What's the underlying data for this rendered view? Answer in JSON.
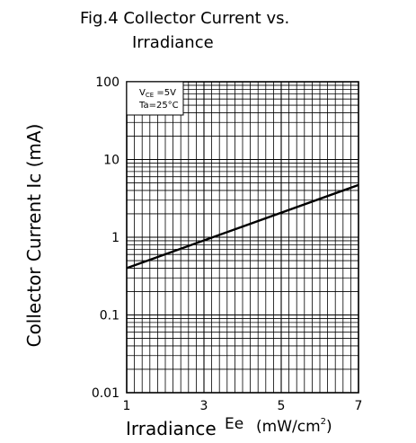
{
  "chart_data": {
    "type": "line",
    "title_line1": "Fig.4  Collector  Current  vs.",
    "title_line2": "Irradiance",
    "xlabel": "Irradiance",
    "xlabel_symbol": "Ee",
    "xlabel_unit_open": "(mW/cm",
    "xlabel_unit_exp": "2",
    "xlabel_unit_close": ")",
    "ylabel": "Collector  Current  Ic  (mA)",
    "x_scale": "linear",
    "y_scale": "log",
    "xlim": [
      1,
      7
    ],
    "ylim": [
      0.01,
      100
    ],
    "x_ticks": [
      1,
      3,
      5,
      7
    ],
    "x_tick_labels": [
      "1",
      "3",
      "5",
      "7"
    ],
    "y_ticks": [
      0.01,
      0.1,
      1,
      10,
      100
    ],
    "y_tick_labels": [
      "0.01",
      "0.1",
      "1",
      "10",
      "100"
    ],
    "grid": true,
    "conditions": {
      "vce_main": "V",
      "vce_sub": "CE",
      "vce_value": " =5V",
      "ta": "Ta=25°C"
    },
    "series": [
      {
        "x": [
          1,
          7
        ],
        "y": [
          0.4,
          4.7
        ]
      }
    ]
  }
}
